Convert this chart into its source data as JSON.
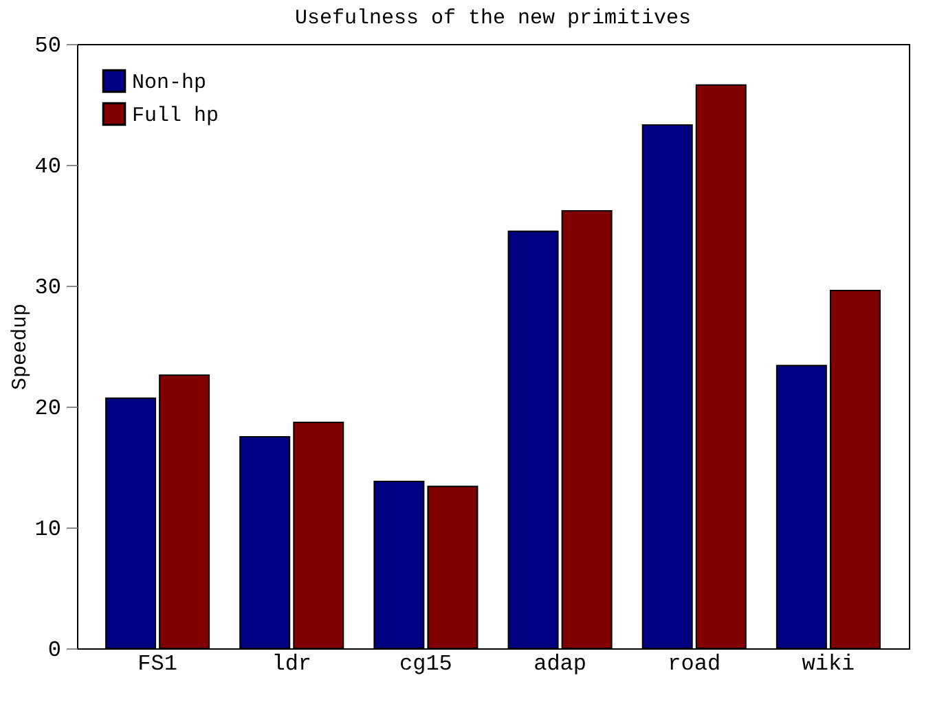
{
  "chart_data": {
    "type": "bar",
    "title": "Usefulness of the new primitives",
    "ylabel": "Speedup",
    "categories": [
      "FS1",
      "ldr",
      "cg15",
      "adap",
      "road",
      "wiki"
    ],
    "series": [
      {
        "name": "Non-hp",
        "color": "#000080",
        "values": [
          20.7,
          17.5,
          13.8,
          34.5,
          43.3,
          23.4
        ]
      },
      {
        "name": "Full hp",
        "color": "#800000",
        "values": [
          22.6,
          18.7,
          13.4,
          36.2,
          46.6,
          29.6
        ]
      }
    ],
    "ylim": [
      0,
      50
    ],
    "yticks": [
      0,
      10,
      20,
      30,
      40,
      50
    ],
    "grid": false,
    "legend": "top left"
  }
}
